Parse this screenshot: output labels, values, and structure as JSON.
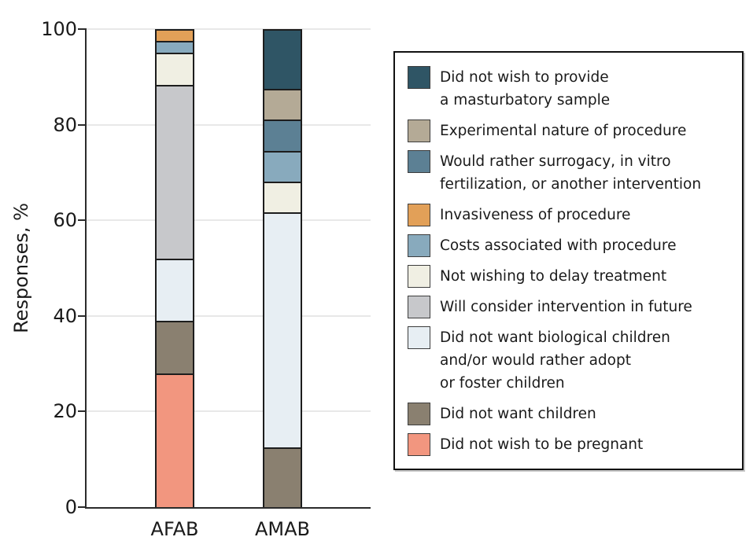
{
  "chart_data": {
    "type": "bar",
    "subtype": "stacked-percent",
    "title": "",
    "xlabel": "",
    "ylabel": "Responses, %",
    "categories": [
      "AFAB",
      "AMAB"
    ],
    "ylim": [
      0,
      100
    ],
    "yticks": [
      "0",
      "20",
      "40",
      "60",
      "80",
      "100"
    ],
    "grid": "horizontal",
    "legend_position": "right",
    "series": [
      {
        "name": "Did not wish to provide a masturbatory sample",
        "label_lines": [
          "Did not wish to provide",
          "a masturbatory sample"
        ],
        "color": "#2F5565",
        "values": [
          0,
          12.5
        ]
      },
      {
        "name": "Experimental nature of procedure",
        "label_lines": [
          "Experimental nature of procedure"
        ],
        "color": "#B4AA96",
        "values": [
          0,
          6.25
        ]
      },
      {
        "name": "Would rather surrogacy, in vitro fertilization, or another intervention",
        "label_lines": [
          "Would rather surrogacy, in vitro",
          "fertilization, or another intervention"
        ],
        "color": "#5C8094",
        "values": [
          0,
          6.25
        ]
      },
      {
        "name": "Invasiveness of procedure",
        "label_lines": [
          "Invasiveness of procedure"
        ],
        "color": "#E2A058",
        "values": [
          2.2,
          0
        ]
      },
      {
        "name": "Costs associated with procedure",
        "label_lines": [
          "Costs associated with procedure"
        ],
        "color": "#88AABD",
        "values": [
          2.2,
          6.25
        ]
      },
      {
        "name": "Not wishing to delay treatment",
        "label_lines": [
          "Not wishing to delay treatment"
        ],
        "color": "#F0EFE3",
        "values": [
          6.5,
          6.25
        ]
      },
      {
        "name": "Will consider intervention in future",
        "label_lines": [
          "Will consider intervention in future"
        ],
        "color": "#C7C8CB",
        "values": [
          37.0,
          0
        ]
      },
      {
        "name": "Did not want biological children and/or would rather adopt or foster children",
        "label_lines": [
          "Did not want biological children",
          "and/or would rather adopt",
          "or foster children"
        ],
        "color": "#E7EEF3",
        "values": [
          13.0,
          50.0
        ]
      },
      {
        "name": "Did not want children",
        "label_lines": [
          "Did not want children"
        ],
        "color": "#8A8070",
        "values": [
          10.9,
          12.5
        ]
      },
      {
        "name": "Did not wish to be pregnant",
        "label_lines": [
          "Did not wish to be pregnant"
        ],
        "color": "#F2967F",
        "values": [
          28.3,
          0
        ]
      }
    ]
  }
}
